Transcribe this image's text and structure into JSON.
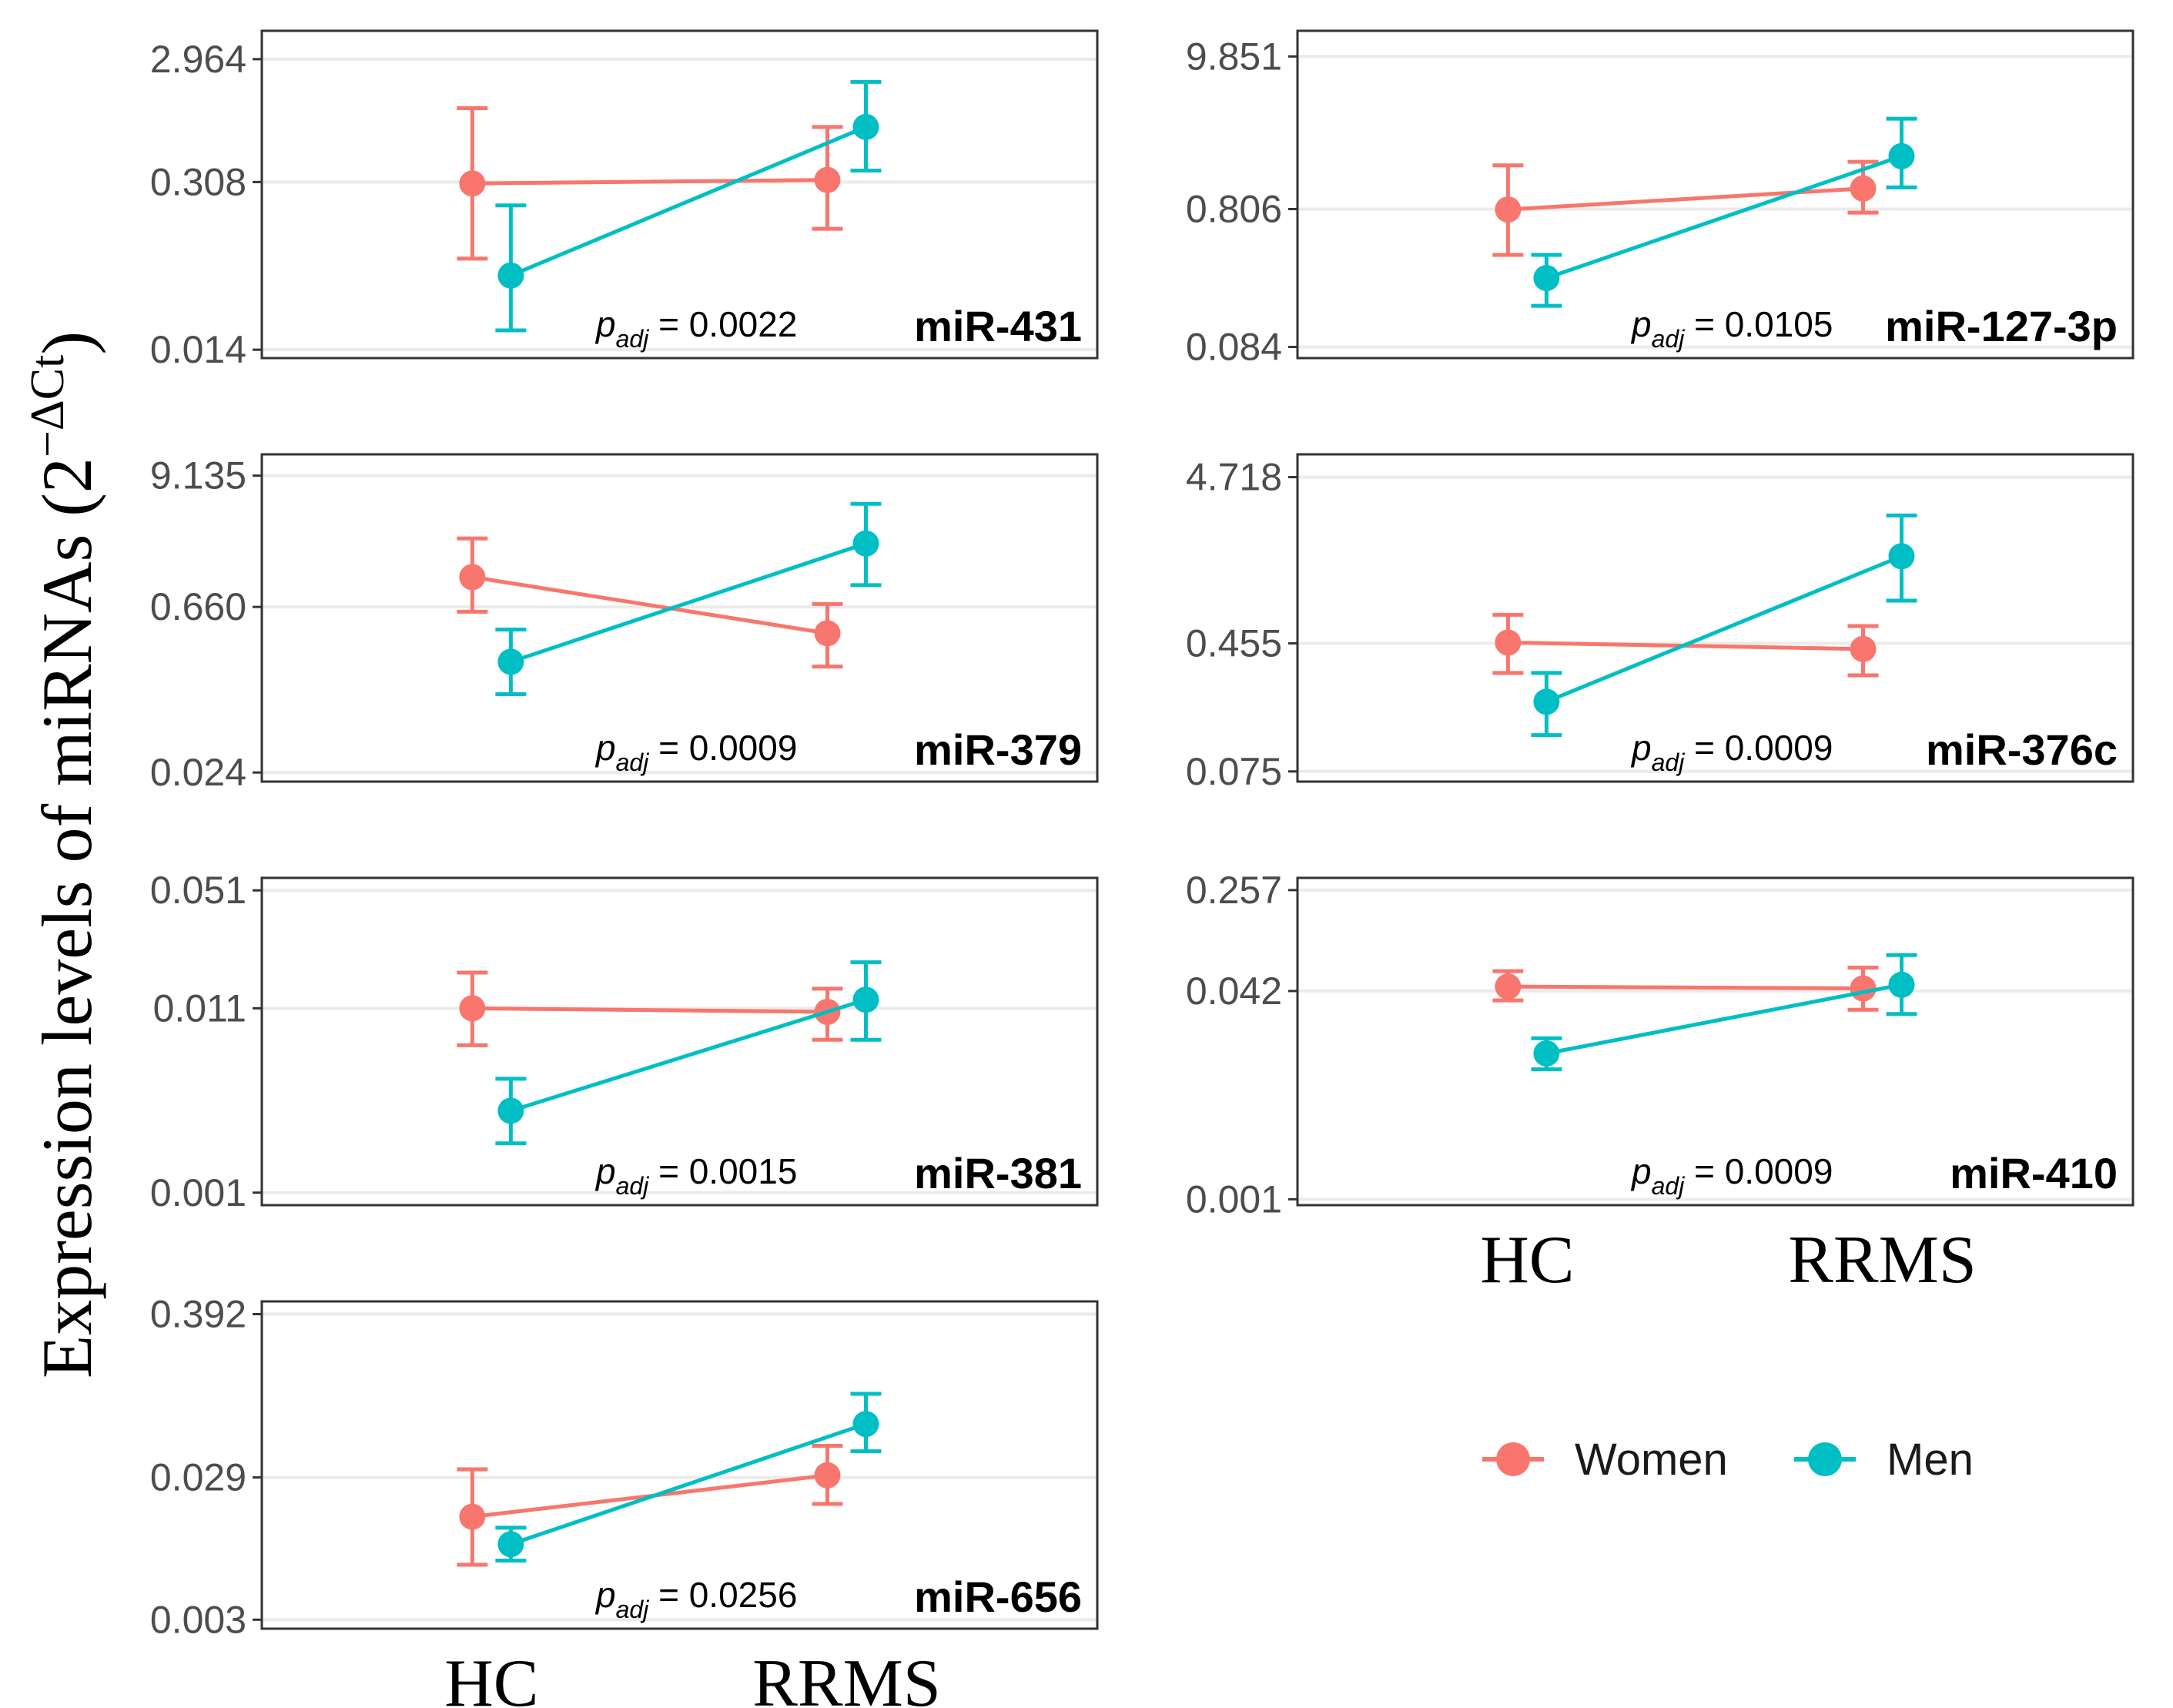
{
  "colors": {
    "women": "#F8766D",
    "men": "#00BFC4",
    "grid": "#EBEBEB",
    "frame": "#333333"
  },
  "y_title_main": "Expression levels of miRNAs (2",
  "y_title_sup": "−ΔCt",
  "y_title_end": ")",
  "legend": {
    "women": "Women",
    "men": "Men"
  },
  "chart_data": [
    {
      "type": "line",
      "title": "miR-431",
      "p_label": "p",
      "p_sub": "adj",
      "p_value": " = 0.0022",
      "categories": [
        "HC",
        "RRMS"
      ],
      "yscale": "log",
      "ylim": [
        0.012,
        5.0
      ],
      "yticks": [
        "2.964",
        "0.308",
        "0.014"
      ],
      "show_xlabels": false,
      "series": [
        {
          "name": "Women",
          "values": [
            0.3,
            0.32
          ],
          "lower": [
            0.075,
            0.13
          ],
          "upper": [
            1.2,
            0.85
          ]
        },
        {
          "name": "Men",
          "values": [
            0.055,
            0.85
          ],
          "lower": [
            0.02,
            0.38
          ],
          "upper": [
            0.2,
            1.95
          ]
        }
      ]
    },
    {
      "type": "line",
      "title": "miR-127-3p",
      "p_label": "p",
      "p_sub": "adj",
      "p_value": " = 0.0105",
      "categories": [
        "HC",
        "RRMS"
      ],
      "yscale": "log",
      "ylim": [
        0.07,
        15.0
      ],
      "yticks": [
        "9.851",
        "0.806",
        "0.084"
      ],
      "show_xlabels": false,
      "series": [
        {
          "name": "Women",
          "values": [
            0.8,
            1.13
          ],
          "lower": [
            0.38,
            0.76
          ],
          "upper": [
            1.65,
            1.75
          ]
        },
        {
          "name": "Men",
          "values": [
            0.26,
            1.92
          ],
          "lower": [
            0.165,
            1.15
          ],
          "upper": [
            0.38,
            3.55
          ]
        }
      ]
    },
    {
      "type": "line",
      "title": "miR-379",
      "p_label": "p",
      "p_sub": "adj",
      "p_value": " = 0.0009",
      "categories": [
        "HC",
        "RRMS"
      ],
      "yscale": "log",
      "ylim": [
        0.02,
        14.0
      ],
      "yticks": [
        "9.135",
        "0.660",
        "0.024"
      ],
      "show_xlabels": false,
      "series": [
        {
          "name": "Women",
          "values": [
            1.2,
            0.39
          ],
          "lower": [
            0.6,
            0.2
          ],
          "upper": [
            2.6,
            0.7
          ]
        },
        {
          "name": "Men",
          "values": [
            0.22,
            2.35
          ],
          "lower": [
            0.115,
            1.02
          ],
          "upper": [
            0.42,
            5.2
          ]
        }
      ]
    },
    {
      "type": "line",
      "title": "miR-376c",
      "p_label": "p",
      "p_sub": "adj",
      "p_value": " = 0.0009",
      "categories": [
        "HC",
        "RRMS"
      ],
      "yscale": "log",
      "ylim": [
        0.065,
        6.5
      ],
      "yticks": [
        "4.718",
        "0.455",
        "0.075"
      ],
      "show_xlabels": false,
      "series": [
        {
          "name": "Women",
          "values": [
            0.46,
            0.42
          ],
          "lower": [
            0.3,
            0.29
          ],
          "upper": [
            0.68,
            0.58
          ]
        },
        {
          "name": "Men",
          "values": [
            0.2,
            1.55
          ],
          "lower": [
            0.125,
            0.83
          ],
          "upper": [
            0.3,
            2.75
          ]
        }
      ]
    },
    {
      "type": "line",
      "title": "miR-381",
      "p_label": "p",
      "p_sub": "adj",
      "p_value": " = 0.0015",
      "categories": [
        "HC",
        "RRMS"
      ],
      "yscale": "log",
      "ylim": [
        0.00085,
        0.06
      ],
      "yticks": [
        "0.051",
        "0.011",
        "0.001"
      ],
      "show_xlabels": false,
      "series": [
        {
          "name": "Women",
          "values": [
            0.011,
            0.0105
          ],
          "lower": [
            0.0068,
            0.0073
          ],
          "upper": [
            0.0175,
            0.0142
          ]
        },
        {
          "name": "Men",
          "values": [
            0.0029,
            0.0123
          ],
          "lower": [
            0.0019,
            0.0073
          ],
          "upper": [
            0.0044,
            0.02
          ]
        }
      ]
    },
    {
      "type": "line",
      "title": "miR-410",
      "p_label": "p",
      "p_sub": "adj",
      "p_value": " = 0.0009",
      "categories": [
        "HC",
        "RRMS"
      ],
      "yscale": "log",
      "ylim": [
        0.0009,
        0.32
      ],
      "yticks": [
        "0.257",
        "0.042",
        "0.001"
      ],
      "show_xlabels": true,
      "series": [
        {
          "name": "Women",
          "values": [
            0.0455,
            0.044
          ],
          "lower": [
            0.0355,
            0.03
          ],
          "upper": [
            0.06,
            0.064
          ]
        },
        {
          "name": "Men",
          "values": [
            0.0137,
            0.047
          ],
          "lower": [
            0.0103,
            0.0278
          ],
          "upper": [
            0.018,
            0.08
          ]
        }
      ]
    },
    {
      "type": "line",
      "title": "miR-656",
      "p_label": "p",
      "p_sub": "adj",
      "p_value": " = 0.0256",
      "categories": [
        "HC",
        "RRMS"
      ],
      "yscale": "log",
      "ylim": [
        0.0026,
        0.48
      ],
      "yticks": [
        "0.392",
        "0.029",
        "0.003"
      ],
      "show_xlabels": true,
      "series": [
        {
          "name": "Women",
          "values": [
            0.0155,
            0.03
          ],
          "lower": [
            0.0072,
            0.019
          ],
          "upper": [
            0.033,
            0.048
          ]
        },
        {
          "name": "Men",
          "values": [
            0.01,
            0.068
          ],
          "lower": [
            0.0077,
            0.044
          ],
          "upper": [
            0.013,
            0.11
          ]
        }
      ]
    }
  ]
}
